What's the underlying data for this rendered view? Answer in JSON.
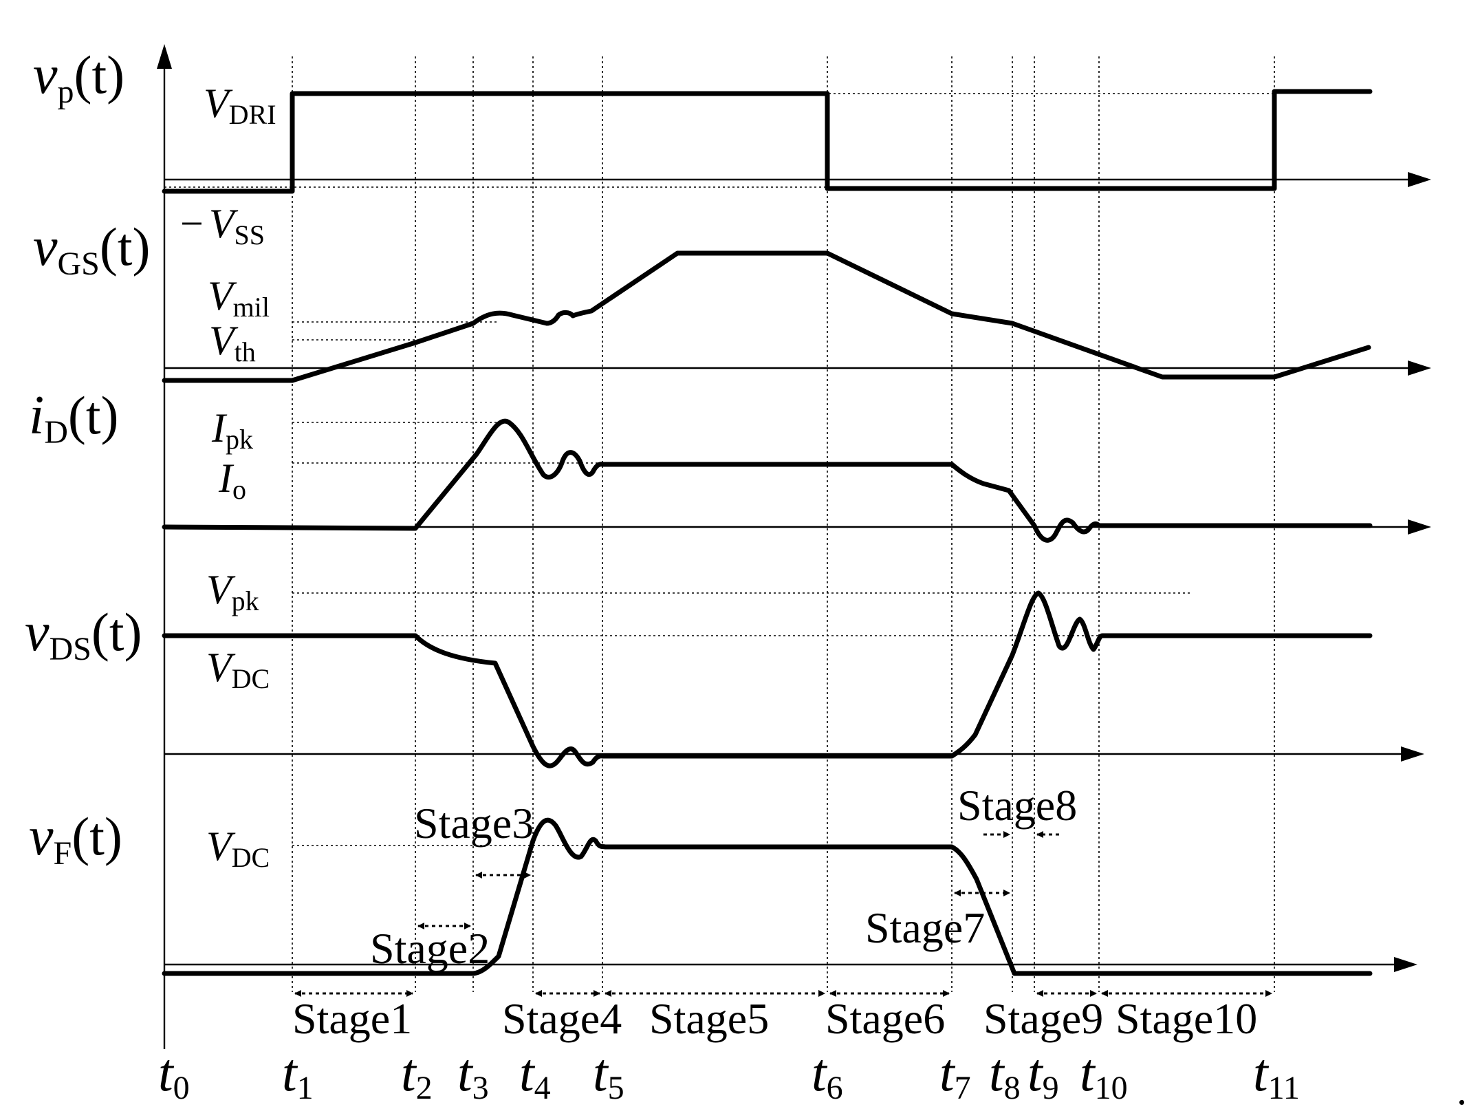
{
  "signals": {
    "vp": {
      "main": "v",
      "sub": "p",
      "arg": "(t)"
    },
    "vgs": {
      "main": "v",
      "sub": "GS",
      "arg": "(t)"
    },
    "id": {
      "main": "i",
      "sub": "D",
      "arg": "(t)"
    },
    "vds": {
      "main": "v",
      "sub": "DS",
      "arg": "(t)"
    },
    "vf": {
      "main": "v",
      "sub": "F",
      "arg": "(t)"
    }
  },
  "levels": {
    "vdri": {
      "main": "V",
      "sub": "DRI"
    },
    "vss": {
      "prefix": "−",
      "main": "V",
      "sub": "SS"
    },
    "vmil": {
      "main": "V",
      "sub": "mil"
    },
    "vth": {
      "main": "V",
      "sub": "th"
    },
    "ipk": {
      "main": "I",
      "sub": "pk"
    },
    "io": {
      "main": "I",
      "sub": "o"
    },
    "vpk": {
      "main": "V",
      "sub": "pk"
    },
    "vdc1": {
      "main": "V",
      "sub": "DC"
    },
    "vdc2": {
      "main": "V",
      "sub": "DC"
    }
  },
  "time_labels": [
    {
      "main": "t",
      "sub": "0"
    },
    {
      "main": "t",
      "sub": "1"
    },
    {
      "main": "t",
      "sub": "2"
    },
    {
      "main": "t",
      "sub": "3"
    },
    {
      "main": "t",
      "sub": "4"
    },
    {
      "main": "t",
      "sub": "5"
    },
    {
      "main": "t",
      "sub": "6"
    },
    {
      "main": "t",
      "sub": "7"
    },
    {
      "main": "t",
      "sub": "8"
    },
    {
      "main": "t",
      "sub": "9"
    },
    {
      "main": "t",
      "sub": "10"
    },
    {
      "main": "t",
      "sub": "11"
    }
  ],
  "stages": [
    "Stage1",
    "Stage2",
    "Stage3",
    "Stage4",
    "Stage5",
    "Stage6",
    "Stage7",
    "Stage8",
    "Stage9",
    "Stage10"
  ],
  "trailing_mark": "."
}
